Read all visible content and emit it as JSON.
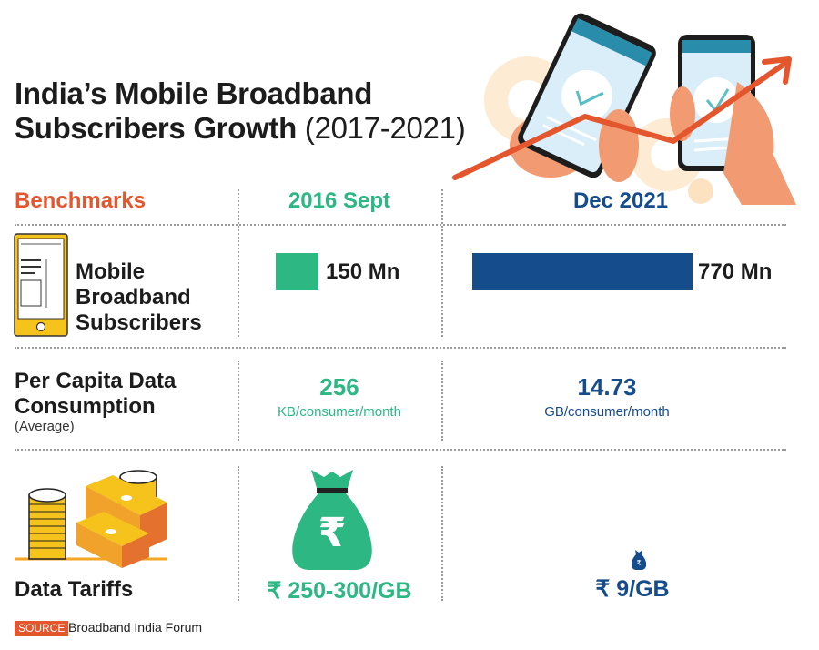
{
  "title": {
    "main": "India’s Mobile Broadband",
    "line2_bold": "Subscribers Growth",
    "line2_light": "(2017-2021)"
  },
  "headers": {
    "benchmarks": "Benchmarks",
    "col1": "2016 Sept",
    "col2": "Dec 2021"
  },
  "rows": {
    "subscribers": {
      "label_lines": [
        "Mobile",
        "Broadband",
        "Subscribers"
      ],
      "icon": "smartphone-icon",
      "col1": "150 Mn",
      "col2": "770 Mn"
    },
    "consumption": {
      "label_lines": [
        "Per Capita Data",
        "Consumption"
      ],
      "sublabel": "(Average)",
      "col1_value": "256",
      "col1_unit": "KB/consumer/month",
      "col2_value": "14.73",
      "col2_unit": "GB/consumer/month"
    },
    "tariffs": {
      "label": "Data Tariffs",
      "icon": "money-stack-icon",
      "col1": "₹ 250-300/GB",
      "col2": "₹ 9/GB",
      "bag_symbol": "₹"
    }
  },
  "source": {
    "tag": "SOURCE",
    "text": "Broadband India Forum"
  },
  "colors": {
    "orange": "#e4572e",
    "green": "#2db783",
    "blue": "#154c8c",
    "yellow": "#f6c21c"
  },
  "chart_data": {
    "type": "bar",
    "title": "India’s Mobile Broadband Subscribers Growth (2017-2021)",
    "categories": [
      "2016 Sept",
      "Dec 2021"
    ],
    "series": [
      {
        "name": "Mobile Broadband Subscribers (Mn)",
        "values": [
          150,
          770
        ]
      }
    ],
    "units": "Mn",
    "xlabel": "",
    "ylabel": "",
    "ylim": [
      0,
      770
    ]
  }
}
